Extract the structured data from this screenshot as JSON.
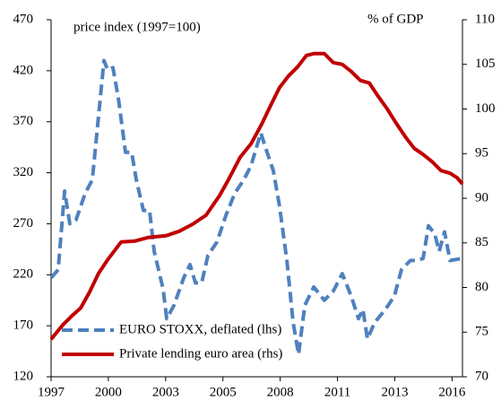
{
  "chart_data": {
    "type": "line",
    "ylabel": "price index (1997=100)",
    "y2label": "% of GDP",
    "xlim": [
      1997,
      2016.75
    ],
    "xticks": [
      {
        "value": 1997,
        "label": "1997"
      },
      {
        "value": 1999.75,
        "label": "2000"
      },
      {
        "value": 2002.5,
        "label": "2003"
      },
      {
        "value": 2005.25,
        "label": "2005"
      },
      {
        "value": 2008,
        "label": "2008"
      },
      {
        "value": 2010.75,
        "label": "2011"
      },
      {
        "value": 2013.5,
        "label": "2013"
      },
      {
        "value": 2016.25,
        "label": "2016"
      }
    ],
    "ylim": [
      120,
      470
    ],
    "yticks": [
      120,
      170,
      220,
      270,
      320,
      370,
      420,
      470
    ],
    "y2lim": [
      70,
      110
    ],
    "y2ticks": [
      70,
      75,
      80,
      85,
      90,
      95,
      100,
      105,
      110
    ],
    "legend": "lower left",
    "grid": false,
    "series": [
      {
        "name": "EURO STOXX, deflated (lhs)",
        "color": "#4f81bd",
        "dashed": true,
        "x": [
          1997.0,
          1997.34,
          1997.65,
          1997.9,
          1998.2,
          1998.64,
          1998.98,
          1999.19,
          1999.54,
          1999.71,
          1999.97,
          2000.23,
          2000.57,
          2000.87,
          2001.09,
          2001.43,
          2001.73,
          2001.95,
          2002.38,
          2002.55,
          2002.9,
          2003.37,
          2003.67,
          2003.93,
          2004.23,
          2004.53,
          2004.96,
          2005.39,
          2005.82,
          2006.25,
          2006.6,
          2007.07,
          2007.37,
          2007.67,
          2007.97,
          2008.32,
          2008.62,
          2008.88,
          2009.18,
          2009.61,
          2010.12,
          2010.55,
          2010.98,
          2011.41,
          2011.76,
          2011.97,
          2012.19,
          2012.53,
          2013.05,
          2013.48,
          2013.82,
          2014.25,
          2014.56,
          2014.86,
          2015.12,
          2015.42,
          2015.63,
          2015.89,
          2016.15,
          2016.71
        ],
        "values": [
          217,
          225,
          302,
          270,
          274,
          300,
          313,
          357,
          430,
          421,
          423,
          393,
          340,
          340,
          313,
          283,
          283,
          243,
          206,
          177,
          190,
          217,
          230,
          212,
          212,
          239,
          252,
          278,
          300,
          313,
          327,
          359,
          340,
          322,
          287,
          234,
          173,
          142,
          190,
          208,
          195,
          204,
          221,
          199,
          177,
          186,
          157,
          173,
          186,
          199,
          225,
          234,
          234,
          236,
          268,
          260,
          243,
          262,
          234,
          236
        ]
      },
      {
        "name": "Private lending euro area (rhs)",
        "color": "#c00000",
        "axis": "y2",
        "dashed": false,
        "x": [
          1997.0,
          1997.56,
          1997.99,
          1998.42,
          1998.85,
          1999.28,
          1999.71,
          2000.36,
          2001.0,
          2001.65,
          2002.51,
          2003.15,
          2003.8,
          2004.44,
          2005.09,
          2005.52,
          2006.08,
          2006.6,
          2007.11,
          2007.54,
          2007.97,
          2008.4,
          2008.83,
          2009.26,
          2009.61,
          2010.12,
          2010.55,
          2010.98,
          2011.41,
          2011.85,
          2012.28,
          2012.71,
          2013.14,
          2013.57,
          2014.0,
          2014.43,
          2014.86,
          2015.29,
          2015.72,
          2016.15,
          2016.49,
          2016.75
        ],
        "values": [
          74.2,
          75.8,
          76.8,
          77.7,
          79.5,
          81.6,
          83.1,
          85.1,
          85.2,
          85.6,
          85.8,
          86.3,
          87.1,
          88.1,
          90.3,
          92.1,
          94.6,
          96.1,
          98.3,
          100.4,
          102.4,
          103.7,
          104.7,
          106.0,
          106.2,
          106.2,
          105.2,
          105.0,
          104.2,
          103.2,
          102.9,
          101.4,
          100.0,
          98.4,
          96.9,
          95.6,
          94.9,
          94.1,
          93.1,
          92.8,
          92.3,
          91.6
        ]
      }
    ]
  }
}
